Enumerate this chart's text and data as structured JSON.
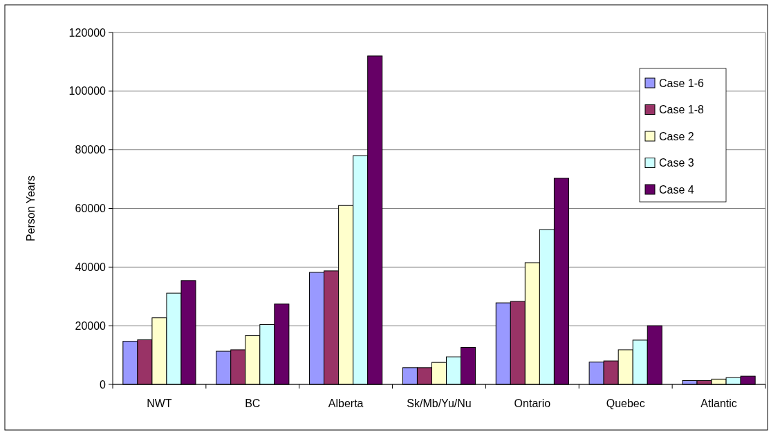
{
  "chart_data": {
    "type": "bar",
    "ylabel": "Person Years",
    "categories": [
      "NWT",
      "BC",
      "Alberta",
      "Sk/Mb/Yu/Nu",
      "Ontario",
      "Quebec",
      "Atlantic"
    ],
    "series": [
      {
        "name": "Case 1-6",
        "color": "#9999ff",
        "values": [
          14700,
          11300,
          38200,
          5700,
          27800,
          7600,
          1300
        ]
      },
      {
        "name": "Case 1-8",
        "color": "#993366",
        "values": [
          15200,
          11800,
          38700,
          5700,
          28300,
          8000,
          1300
        ]
      },
      {
        "name": "Case 2",
        "color": "#ffffcc",
        "values": [
          22700,
          16600,
          61000,
          7500,
          41500,
          11800,
          1800
        ]
      },
      {
        "name": "Case 3",
        "color": "#ccffff",
        "values": [
          31100,
          20400,
          78000,
          9400,
          52800,
          15100,
          2300
        ]
      },
      {
        "name": "Case 4",
        "color": "#660066",
        "values": [
          35400,
          27400,
          112000,
          12600,
          70300,
          20000,
          2800
        ]
      }
    ],
    "ylim": [
      0,
      120000
    ],
    "yticks": [
      0,
      20000,
      40000,
      60000,
      80000,
      100000,
      120000
    ],
    "grid": "y",
    "legend": "top right"
  }
}
